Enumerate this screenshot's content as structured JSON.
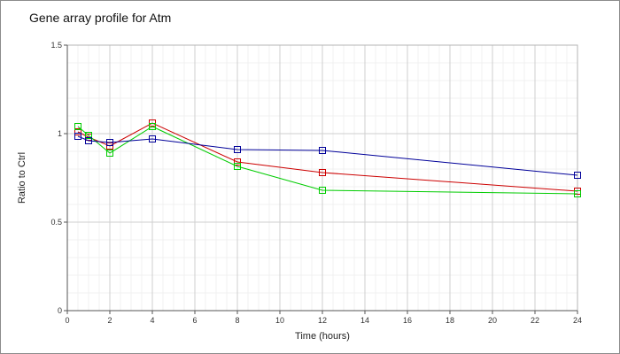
{
  "chart_data": {
    "type": "line",
    "title": "Gene array profile for Atm",
    "xlabel": "Time (hours)",
    "ylabel": "Ratio to Ctrl",
    "xlim": [
      0,
      24
    ],
    "ylim": [
      0,
      1.5
    ],
    "x_ticks": [
      "0",
      "2",
      "4",
      "6",
      "8",
      "10",
      "12",
      "14",
      "16",
      "18",
      "20",
      "22",
      "24"
    ],
    "y_ticks": [
      "0",
      "0.5",
      "1",
      "1.5"
    ],
    "grid": true,
    "legend": "none",
    "marker": "square",
    "series": [
      {
        "color": "#cc0000",
        "x": [
          0.5,
          1,
          2,
          4,
          8,
          12,
          24
        ],
        "y": [
          1.01,
          0.98,
          0.93,
          1.06,
          0.84,
          0.78,
          0.675
        ]
      },
      {
        "color": "#00cc00",
        "x": [
          0.5,
          1,
          2,
          4,
          8,
          12,
          24
        ],
        "y": [
          1.04,
          0.99,
          0.89,
          1.04,
          0.815,
          0.68,
          0.66
        ]
      },
      {
        "color": "#000099",
        "x": [
          0.5,
          1,
          2,
          4,
          8,
          12,
          24
        ],
        "y": [
          0.985,
          0.96,
          0.95,
          0.97,
          0.91,
          0.905,
          0.765
        ]
      }
    ]
  }
}
